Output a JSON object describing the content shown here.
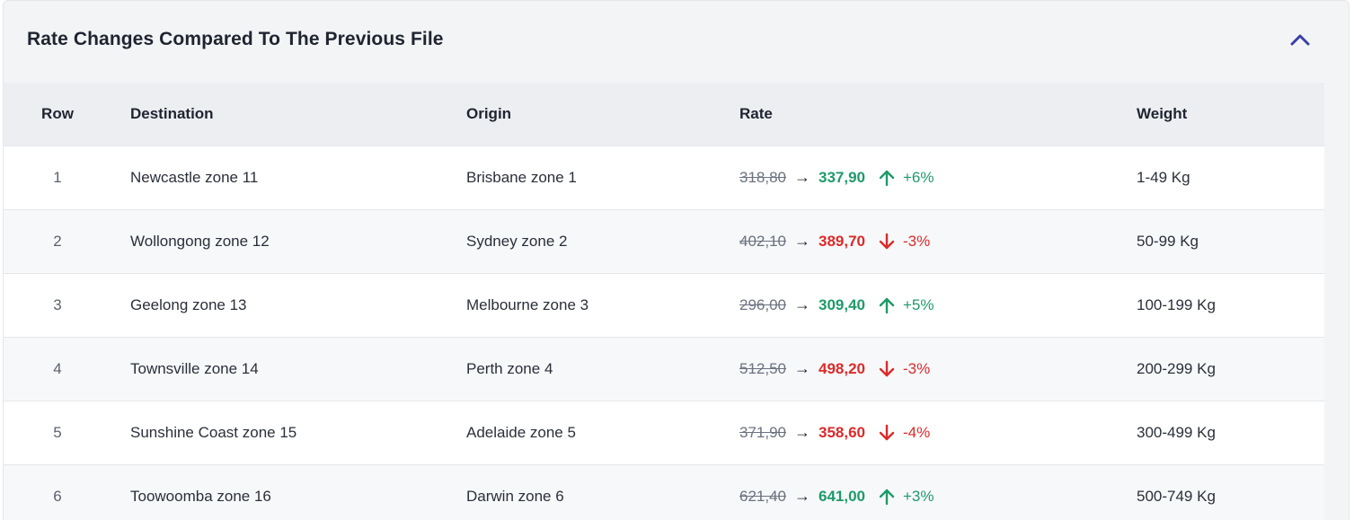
{
  "panel": {
    "title": "Rate Changes Compared To The Previous File",
    "collapse_icon": "chevron-up-icon",
    "accent": "#3b3fa8"
  },
  "table": {
    "headers": {
      "row": "Row",
      "destination": "Destination",
      "origin": "Origin",
      "rate": "Rate",
      "weight": "Weight"
    },
    "arrow": "→",
    "colors": {
      "increase": "#1e9a6a",
      "decrease": "#dc2a2a"
    },
    "rows": [
      {
        "row": "1",
        "destination": "Newcastle zone 11",
        "origin": "Brisbane zone 1",
        "old_rate": "318,80",
        "new_rate": "337,90",
        "direction": "up",
        "change": "+6%",
        "weight": "1-49 Kg"
      },
      {
        "row": "2",
        "destination": "Wollongong zone 12",
        "origin": "Sydney zone 2",
        "old_rate": "402,10",
        "new_rate": "389,70",
        "direction": "down",
        "change": "-3%",
        "weight": "50-99 Kg"
      },
      {
        "row": "3",
        "destination": "Geelong zone 13",
        "origin": "Melbourne zone 3",
        "old_rate": "296,00",
        "new_rate": "309,40",
        "direction": "up",
        "change": "+5%",
        "weight": "100-199 Kg"
      },
      {
        "row": "4",
        "destination": "Townsville zone 14",
        "origin": "Perth zone 4",
        "old_rate": "512,50",
        "new_rate": "498,20",
        "direction": "down",
        "change": "-3%",
        "weight": "200-299 Kg"
      },
      {
        "row": "5",
        "destination": "Sunshine Coast zone 15",
        "origin": "Adelaide zone 5",
        "old_rate": "371,90",
        "new_rate": "358,60",
        "direction": "down",
        "change": "-4%",
        "weight": "300-499 Kg"
      },
      {
        "row": "6",
        "destination": "Toowoomba zone 16",
        "origin": "Darwin zone 6",
        "old_rate": "621,40",
        "new_rate": "641,00",
        "direction": "up",
        "change": "+3%",
        "weight": "500-749 Kg"
      }
    ]
  }
}
